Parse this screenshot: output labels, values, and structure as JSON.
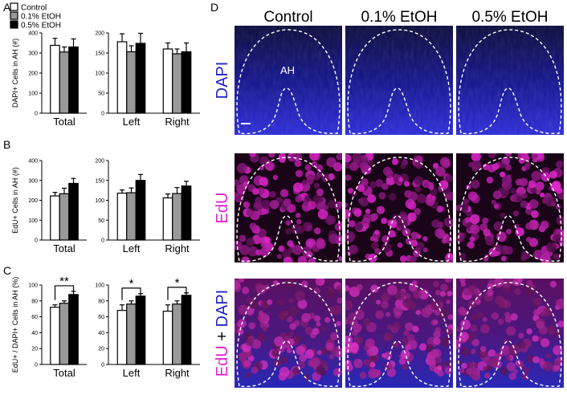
{
  "panel_labels": [
    "A",
    "B",
    "C",
    "D"
  ],
  "legend": [
    {
      "label": "Control",
      "color": "#ffffff"
    },
    {
      "label": "0.1% EtOH",
      "color": "#999999"
    },
    {
      "label": "0.5% EtOH",
      "color": "#000000"
    }
  ],
  "chart_data": [
    {
      "id": "A-total",
      "type": "bar",
      "ylabel": "DAPI+ Cells in AH (#)",
      "ylim": [
        0,
        400
      ],
      "yticks": [
        0,
        100,
        200,
        300,
        400
      ],
      "categories": [
        "Total"
      ],
      "series": [
        {
          "name": "Control",
          "values": [
            338
          ],
          "errors": [
            35
          ]
        },
        {
          "name": "0.1% EtOH",
          "values": [
            305
          ],
          "errors": [
            25
          ]
        },
        {
          "name": "0.5% EtOH",
          "values": [
            330
          ],
          "errors": [
            40
          ]
        }
      ],
      "significance": []
    },
    {
      "id": "A-lr",
      "type": "bar",
      "ylim": [
        0,
        200
      ],
      "yticks": [
        0,
        50,
        100,
        150,
        200
      ],
      "categories": [
        "Left",
        "Right"
      ],
      "series": [
        {
          "name": "Control",
          "values": [
            178,
            160
          ],
          "errors": [
            20,
            15
          ]
        },
        {
          "name": "0.1% EtOH",
          "values": [
            153,
            148
          ],
          "errors": [
            15,
            12
          ]
        },
        {
          "name": "0.5% EtOH",
          "values": [
            174,
            153
          ],
          "errors": [
            25,
            22
          ]
        }
      ],
      "significance": []
    },
    {
      "id": "B-total",
      "type": "bar",
      "ylabel": "EdU+ Cells in AH (#)",
      "ylim": [
        0,
        400
      ],
      "yticks": [
        0,
        100,
        200,
        300,
        400
      ],
      "categories": [
        "Total"
      ],
      "series": [
        {
          "name": "Control",
          "values": [
            222
          ],
          "errors": [
            18
          ]
        },
        {
          "name": "0.1% EtOH",
          "values": [
            233
          ],
          "errors": [
            28
          ]
        },
        {
          "name": "0.5% EtOH",
          "values": [
            285
          ],
          "errors": [
            25
          ]
        }
      ],
      "significance": []
    },
    {
      "id": "B-lr",
      "type": "bar",
      "ylim": [
        0,
        200
      ],
      "yticks": [
        0,
        50,
        100,
        150,
        200
      ],
      "categories": [
        "Left",
        "Right"
      ],
      "series": [
        {
          "name": "Control",
          "values": [
            118,
            106
          ],
          "errors": [
            8,
            10
          ]
        },
        {
          "name": "0.1% EtOH",
          "values": [
            119,
            117
          ],
          "errors": [
            12,
            15
          ]
        },
        {
          "name": "0.5% EtOH",
          "values": [
            150,
            136
          ],
          "errors": [
            15,
            12
          ]
        }
      ],
      "significance": []
    },
    {
      "id": "C-total",
      "type": "bar",
      "ylabel": "EdU+ / DAPI+ Cells in AH (%)",
      "ylim": [
        0,
        100
      ],
      "yticks": [
        0,
        20,
        40,
        60,
        80,
        100
      ],
      "categories": [
        "Total"
      ],
      "series": [
        {
          "name": "Control",
          "values": [
            72
          ],
          "errors": [
            3
          ]
        },
        {
          "name": "0.1% EtOH",
          "values": [
            77
          ],
          "errors": [
            3
          ]
        },
        {
          "name": "0.5% EtOH",
          "values": [
            88
          ],
          "errors": [
            4
          ]
        }
      ],
      "significance": [
        {
          "category": 0,
          "from": 0,
          "to": 2,
          "label": "**"
        }
      ]
    },
    {
      "id": "C-lr",
      "type": "bar",
      "ylim": [
        0,
        100
      ],
      "yticks": [
        0,
        20,
        40,
        60,
        80,
        100
      ],
      "categories": [
        "Left",
        "Right"
      ],
      "series": [
        {
          "name": "Control",
          "values": [
            68,
            67
          ],
          "errors": [
            7,
            8
          ]
        },
        {
          "name": "0.1% EtOH",
          "values": [
            76,
            76
          ],
          "errors": [
            4,
            4
          ]
        },
        {
          "name": "0.5% EtOH",
          "values": [
            86,
            87
          ],
          "errors": [
            3,
            3
          ]
        }
      ],
      "significance": [
        {
          "category": 0,
          "from": 0,
          "to": 2,
          "label": "*"
        },
        {
          "category": 1,
          "from": 0,
          "to": 2,
          "label": "*"
        }
      ]
    }
  ],
  "micrographs": {
    "columns": [
      "Control",
      "0.1% EtOH",
      "0.5% EtOH"
    ],
    "region_label": "AH",
    "rows": [
      {
        "id": "dapi",
        "parts": [
          {
            "text": "DAPI",
            "color": "#2222cc"
          }
        ]
      },
      {
        "id": "edu",
        "parts": [
          {
            "text": "EdU",
            "color": "#e020d0"
          }
        ]
      },
      {
        "id": "merge",
        "parts": [
          {
            "text": "EdU",
            "color": "#e020d0"
          },
          {
            "text": " + ",
            "color": "#000000"
          },
          {
            "text": "DAPI",
            "color": "#2222cc"
          }
        ]
      }
    ]
  }
}
